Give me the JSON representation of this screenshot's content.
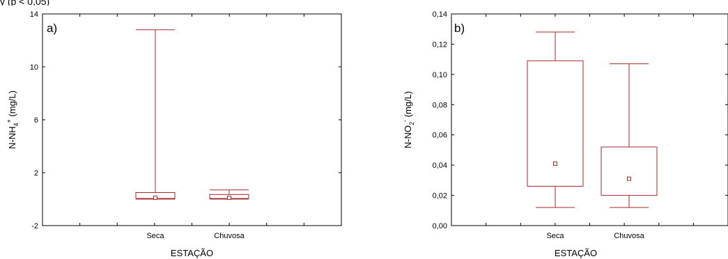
{
  "header_fragment": "y (p < 0,05)",
  "colors": {
    "box": "#a52a2a",
    "axis": "#000000"
  },
  "chart_data": [
    {
      "type": "boxplot",
      "panel_label": "a)",
      "xlabel": "ESTAÇÃO",
      "ylabel": {
        "base": "N-NH",
        "sub": "4",
        "sup": "+",
        "unit": " (mg/L)"
      },
      "ylim": [
        -2,
        14
      ],
      "yticks": [
        -2,
        2,
        6,
        10,
        14
      ],
      "ytick_labels": [
        "-2",
        "2",
        "6",
        "10",
        "14"
      ],
      "categories": [
        "Seca",
        "Chuvosa"
      ],
      "series": [
        {
          "category": "Seca",
          "min": 0.0,
          "q1": 0.05,
          "median": 0.1,
          "q3": 0.5,
          "max": 12.8
        },
        {
          "category": "Chuvosa",
          "min": 0.0,
          "q1": 0.05,
          "median": 0.1,
          "q3": 0.35,
          "max": 0.7
        }
      ]
    },
    {
      "type": "boxplot",
      "panel_label": "b)",
      "xlabel": "ESTAÇÃO",
      "ylabel": {
        "base": "N-NO",
        "sub": "2",
        "sup": "-",
        "unit": " (mg/L)"
      },
      "ylim": [
        0,
        0.14
      ],
      "yticks": [
        0,
        0.02,
        0.04,
        0.06,
        0.08,
        0.1,
        0.12,
        0.14
      ],
      "ytick_labels": [
        "0,00",
        "0,02",
        "0,04",
        "0,06",
        "0,08",
        "0,10",
        "0,12",
        "0,14"
      ],
      "categories": [
        "Seca",
        "Chuvosa"
      ],
      "series": [
        {
          "category": "Seca",
          "min": 0.012,
          "q1": 0.026,
          "median": 0.041,
          "q3": 0.109,
          "max": 0.128
        },
        {
          "category": "Chuvosa",
          "min": 0.012,
          "q1": 0.02,
          "median": 0.031,
          "q3": 0.052,
          "max": 0.107
        }
      ]
    }
  ]
}
